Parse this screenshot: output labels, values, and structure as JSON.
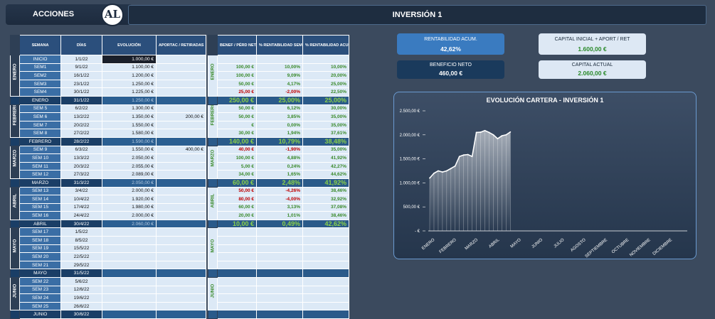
{
  "header": {
    "left_title": "ACCIONES",
    "logo_text": "AL",
    "main_title": "INVERSIÓN 1"
  },
  "table1": {
    "headers": [
      "SEMANA",
      "DÍAS",
      "EVOLUCIÓN",
      "APORTAC / RETIRADAS"
    ]
  },
  "table2": {
    "headers": [
      "BENEF / PÉRD NETA SEM / MES",
      "% RENTABILIDAD SEM / MES",
      "% RENTABILIDAD ACUM"
    ]
  },
  "months": [
    "ENERO",
    "FEBRERO",
    "MARZO",
    "ABRIL",
    "MAYO",
    "JUNIO"
  ],
  "rows": [
    {
      "type": "w",
      "label": "INICIO",
      "date": "1/1/22",
      "evol": "1.000,00 €",
      "apor": "",
      "benef": "",
      "rs": "",
      "ra": "",
      "neg": false,
      "first": true
    },
    {
      "type": "w",
      "label": "SEM1",
      "date": "9/1/22",
      "evol": "1.100,00 €",
      "apor": "",
      "benef": "100,00 €",
      "rs": "10,00%",
      "ra": "10,00%",
      "neg": false
    },
    {
      "type": "w",
      "label": "SEM2",
      "date": "16/1/22",
      "evol": "1.200,00 €",
      "apor": "",
      "benef": "100,00 €",
      "rs": "9,09%",
      "ra": "20,00%",
      "neg": false
    },
    {
      "type": "w",
      "label": "SEM3",
      "date": "23/1/22",
      "evol": "1.250,00 €",
      "apor": "",
      "benef": "50,00 €",
      "rs": "4,17%",
      "ra": "25,00%",
      "neg": false
    },
    {
      "type": "w",
      "label": "SEM4",
      "date": "30/1/22",
      "evol": "1.225,00 €",
      "apor": "",
      "benef": "25,00 €",
      "rs": "-2,00%",
      "ra": "22,50%",
      "neg": true
    },
    {
      "type": "t",
      "label": "ENERO",
      "date": "31/1/22",
      "evol": "1.250,00 €",
      "apor": "",
      "benef": "250,00 €",
      "rs": "25,00%",
      "ra": "25,00%",
      "neg": false
    },
    {
      "type": "w",
      "label": "SEM 5",
      "date": "6/2/22",
      "evol": "1.300,00 €",
      "apor": "",
      "benef": "50,00 €",
      "rs": "6,12%",
      "ra": "30,00%",
      "neg": false
    },
    {
      "type": "w",
      "label": "SEM 6",
      "date": "13/2/22",
      "evol": "1.350,00 €",
      "apor": "200,00 €",
      "benef": "50,00 €",
      "rs": "3,85%",
      "ra": "35,00%",
      "neg": false
    },
    {
      "type": "w",
      "label": "SEM 7",
      "date": "20/2/22",
      "evol": "1.550,00 €",
      "apor": "",
      "benef": "€",
      "rs": "0,00%",
      "ra": "35,00%",
      "neg": false,
      "dash": true
    },
    {
      "type": "w",
      "label": "SEM 8",
      "date": "27/2/22",
      "evol": "1.580,00 €",
      "apor": "",
      "benef": "30,00 €",
      "rs": "1,94%",
      "ra": "37,61%",
      "neg": false
    },
    {
      "type": "t",
      "label": "FEBRERO",
      "date": "28/2/22",
      "evol": "1.590,00 €",
      "apor": "",
      "benef": "140,00 €",
      "rs": "10,79%",
      "ra": "38,48%",
      "neg": false
    },
    {
      "type": "w",
      "label": "SEM 9",
      "date": "6/3/22",
      "evol": "1.550,00 €",
      "apor": "400,00 €",
      "benef": "40,00 €",
      "rs": "-1,90%",
      "ra": "35,00%",
      "neg": true
    },
    {
      "type": "w",
      "label": "SEM 10",
      "date": "13/3/22",
      "evol": "2.050,00 €",
      "apor": "",
      "benef": "100,00 €",
      "rs": "4,88%",
      "ra": "41,92%",
      "neg": false
    },
    {
      "type": "w",
      "label": "SEM 11",
      "date": "20/3/22",
      "evol": "2.055,00 €",
      "apor": "",
      "benef": "5,00 €",
      "rs": "0,24%",
      "ra": "42,27%",
      "neg": false
    },
    {
      "type": "w",
      "label": "SEM 12",
      "date": "27/3/22",
      "evol": "2.089,00 €",
      "apor": "",
      "benef": "34,00 €",
      "rs": "1,65%",
      "ra": "44,62%",
      "neg": false
    },
    {
      "type": "t",
      "label": "MARZO",
      "date": "31/3/22",
      "evol": "2.050,00 €",
      "apor": "",
      "benef": "60,00 €",
      "rs": "2,48%",
      "ra": "41,92%",
      "neg": false
    },
    {
      "type": "w",
      "label": "SEM 13",
      "date": "3/4/22",
      "evol": "2.000,00 €",
      "apor": "",
      "benef": "50,00 €",
      "rs": "-4,26%",
      "ra": "38,46%",
      "neg": true
    },
    {
      "type": "w",
      "label": "SEM 14",
      "date": "10/4/22",
      "evol": "1.920,00 €",
      "apor": "",
      "benef": "80,00 €",
      "rs": "-4,00%",
      "ra": "32,92%",
      "neg": true
    },
    {
      "type": "w",
      "label": "SEM 15",
      "date": "17/4/22",
      "evol": "1.980,00 €",
      "apor": "",
      "benef": "60,00 €",
      "rs": "3,13%",
      "ra": "37,08%",
      "neg": false
    },
    {
      "type": "w",
      "label": "SEM 16",
      "date": "24/4/22",
      "evol": "2.000,00 €",
      "apor": "",
      "benef": "20,00 €",
      "rs": "1,01%",
      "ra": "38,46%",
      "neg": false
    },
    {
      "type": "t",
      "label": "ABRIL",
      "date": "30/4/22",
      "evol": "2.060,00 €",
      "apor": "",
      "benef": "10,00 €",
      "rs": "0,49%",
      "ra": "42,62%",
      "neg": false
    },
    {
      "type": "w",
      "label": "SEM 17",
      "date": "1/5/22",
      "evol": "",
      "apor": "",
      "benef": "",
      "rs": "",
      "ra": "",
      "neg": false
    },
    {
      "type": "w",
      "label": "SEM 18",
      "date": "8/5/22",
      "evol": "",
      "apor": "",
      "benef": "",
      "rs": "",
      "ra": "",
      "neg": false
    },
    {
      "type": "w",
      "label": "SEM 19",
      "date": "15/5/22",
      "evol": "",
      "apor": "",
      "benef": "",
      "rs": "",
      "ra": "",
      "neg": false
    },
    {
      "type": "w",
      "label": "SEM 20",
      "date": "22/5/22",
      "evol": "",
      "apor": "",
      "benef": "",
      "rs": "",
      "ra": "",
      "neg": false
    },
    {
      "type": "w",
      "label": "SEM 21",
      "date": "29/5/22",
      "evol": "",
      "apor": "",
      "benef": "",
      "rs": "",
      "ra": "",
      "neg": false
    },
    {
      "type": "t",
      "label": "MAYO",
      "date": "31/5/22",
      "evol": "",
      "apor": "",
      "benef": "",
      "rs": "",
      "ra": "",
      "neg": false
    },
    {
      "type": "w",
      "label": "SEM 22",
      "date": "5/6/22",
      "evol": "",
      "apor": "",
      "benef": "",
      "rs": "",
      "ra": "",
      "neg": false
    },
    {
      "type": "w",
      "label": "SEM 23",
      "date": "12/6/22",
      "evol": "",
      "apor": "",
      "benef": "",
      "rs": "",
      "ra": "",
      "neg": false
    },
    {
      "type": "w",
      "label": "SEM 24",
      "date": "19/6/22",
      "evol": "",
      "apor": "",
      "benef": "",
      "rs": "",
      "ra": "",
      "neg": false
    },
    {
      "type": "w",
      "label": "SEM 25",
      "date": "26/6/22",
      "evol": "",
      "apor": "",
      "benef": "",
      "rs": "",
      "ra": "",
      "neg": false
    },
    {
      "type": "t",
      "label": "JUNIO",
      "date": "30/6/22",
      "evol": "",
      "apor": "",
      "benef": "",
      "rs": "",
      "ra": "",
      "neg": false
    }
  ],
  "cards": {
    "rent_label": "RENTABILIDAD ACUM.",
    "rent_value": "42,62%",
    "benef_label": "BENEFICIO NETO",
    "benef_value": "460,00 €",
    "cap_label": "CAPITAL INICIAL + APORT / RET",
    "cap_value": "1.600,00 €",
    "actual_label": "CAPITAL ACTUAL",
    "actual_value": "2.060,00 €"
  },
  "chart_data": {
    "type": "area",
    "title": "EVOLUCIÓN CARTERA - INVERSIÓN 1",
    "y_ticks": [
      "2.500,00 €",
      "2.000,00 €",
      "1.500,00 €",
      "1.000,00 €",
      "500,00 €",
      "- €"
    ],
    "ylim": [
      0,
      2500
    ],
    "x_labels": [
      "ENERO",
      "FEBRERO",
      "MARZO",
      "ABRIL",
      "MAYO",
      "JUNIO",
      "JULIO",
      "AGOSTO",
      "SEPTIEMBRE",
      "OCTUBRE",
      "NOVIEMBRE",
      "DICIEMBRE"
    ],
    "values": [
      1100,
      1200,
      1250,
      1225,
      1250,
      1300,
      1350,
      1550,
      1580,
      1590,
      1550,
      2050,
      2055,
      2089,
      2050,
      2000,
      1920,
      1980,
      2000,
      2060
    ],
    "line_color": "#ffffff"
  }
}
